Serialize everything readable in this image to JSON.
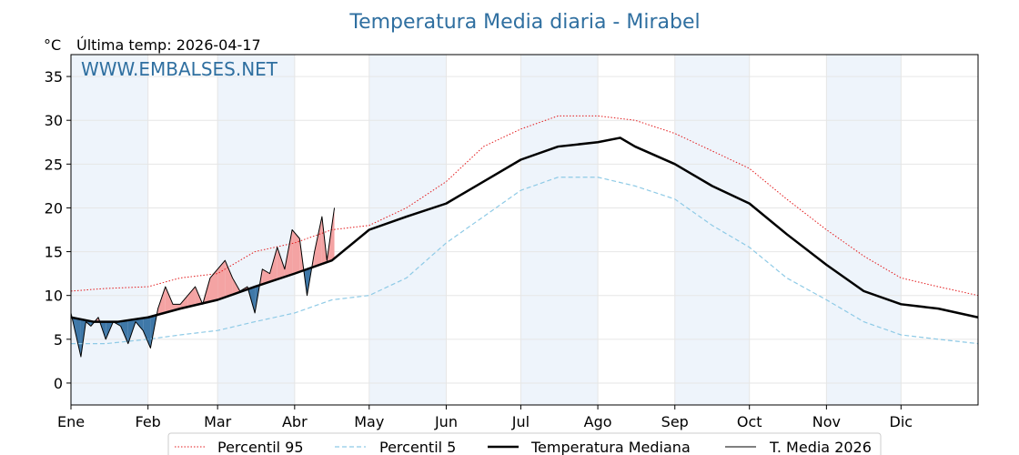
{
  "chart_data": {
    "type": "line",
    "title": "Temperatura Media diaria - Mirabel",
    "unit_label": "°C",
    "last_update": "Última temp: 2026-04-17",
    "watermark": "WWW.EMBALSES.NET",
    "ylim": [
      -2.5,
      37.5
    ],
    "yticks": [
      0,
      5,
      10,
      15,
      20,
      25,
      30,
      35
    ],
    "xlim": [
      1,
      366
    ],
    "months": [
      "Ene",
      "Feb",
      "Mar",
      "Abr",
      "May",
      "Jun",
      "Jul",
      "Ago",
      "Sep",
      "Oct",
      "Nov",
      "Dic"
    ],
    "month_start_days": [
      1,
      32,
      60,
      91,
      121,
      152,
      182,
      213,
      244,
      274,
      305,
      335
    ],
    "shaded_months": [
      "Ene",
      "Mar",
      "May",
      "Jul",
      "Sep",
      "Nov"
    ],
    "grid": true,
    "legend_position": "bottom",
    "colors": {
      "p95": "#e31a1c",
      "p5": "#8ecae6",
      "above": "#f4a3a3",
      "below": "#3f78a8",
      "shade": "#eef4fb"
    },
    "series": [
      {
        "name": "Percentil 95",
        "style": "dotted",
        "color": "#e31a1c",
        "x": [
          1,
          15,
          32,
          45,
          60,
          75,
          91,
          106,
          121,
          136,
          152,
          167,
          182,
          197,
          213,
          228,
          244,
          259,
          274,
          289,
          305,
          320,
          335,
          350,
          366
        ],
        "y": [
          10.5,
          10.8,
          11.0,
          12.0,
          12.5,
          15.0,
          16.0,
          17.5,
          18.0,
          20.0,
          23.0,
          27.0,
          29.0,
          30.5,
          30.5,
          30.0,
          28.5,
          26.5,
          24.5,
          21.0,
          17.5,
          14.5,
          12.0,
          11.0,
          10.0
        ]
      },
      {
        "name": "Percentil 5",
        "style": "dashed",
        "color": "#8ecae6",
        "x": [
          1,
          15,
          32,
          45,
          60,
          75,
          91,
          106,
          121,
          136,
          152,
          167,
          182,
          197,
          213,
          228,
          244,
          259,
          274,
          289,
          305,
          320,
          335,
          350,
          366
        ],
        "y": [
          4.5,
          4.5,
          5.0,
          5.5,
          6.0,
          7.0,
          8.0,
          9.5,
          10.0,
          12.0,
          16.0,
          19.0,
          22.0,
          23.5,
          23.5,
          22.5,
          21.0,
          18.0,
          15.5,
          12.0,
          9.5,
          7.0,
          5.5,
          5.0,
          4.5
        ]
      },
      {
        "name": "Temperatura Mediana",
        "style": "solid-thick",
        "color": "#000000",
        "x": [
          1,
          10,
          20,
          32,
          45,
          60,
          75,
          91,
          106,
          121,
          136,
          152,
          167,
          182,
          197,
          213,
          222,
          228,
          244,
          259,
          274,
          289,
          305,
          320,
          335,
          350,
          366
        ],
        "y": [
          7.5,
          7.0,
          7.0,
          7.5,
          8.5,
          9.5,
          11.0,
          12.5,
          14.0,
          17.5,
          19.0,
          20.5,
          23.0,
          25.5,
          27.0,
          27.5,
          28.0,
          27.0,
          25.0,
          22.5,
          20.5,
          17.0,
          13.5,
          10.5,
          9.0,
          8.5,
          7.5
        ]
      },
      {
        "name": "T. Media 2026",
        "style": "solid-thin",
        "color": "#000000",
        "x": [
          1,
          3,
          5,
          7,
          9,
          12,
          15,
          18,
          21,
          24,
          27,
          30,
          33,
          36,
          39,
          42,
          45,
          48,
          51,
          54,
          57,
          60,
          63,
          66,
          69,
          72,
          75,
          78,
          81,
          84,
          87,
          90,
          93,
          96,
          99,
          102,
          104,
          107
        ],
        "y": [
          8.0,
          5.5,
          3.0,
          7.0,
          6.5,
          7.5,
          5.0,
          7.0,
          6.5,
          4.5,
          7.0,
          6.0,
          4.0,
          8.5,
          11.0,
          9.0,
          9.0,
          10.0,
          11.0,
          9.0,
          12.0,
          13.0,
          14.0,
          12.0,
          10.5,
          11.0,
          8.0,
          13.0,
          12.5,
          15.5,
          13.0,
          17.5,
          16.5,
          10.0,
          15.0,
          19.0,
          14.0,
          20.0
        ]
      }
    ]
  },
  "legend": {
    "items": [
      {
        "key": "p95",
        "label": "Percentil 95"
      },
      {
        "key": "p5",
        "label": "Percentil 5"
      },
      {
        "key": "median",
        "label": "Temperatura Mediana"
      },
      {
        "key": "y2026",
        "label": "T. Media 2026"
      }
    ]
  }
}
